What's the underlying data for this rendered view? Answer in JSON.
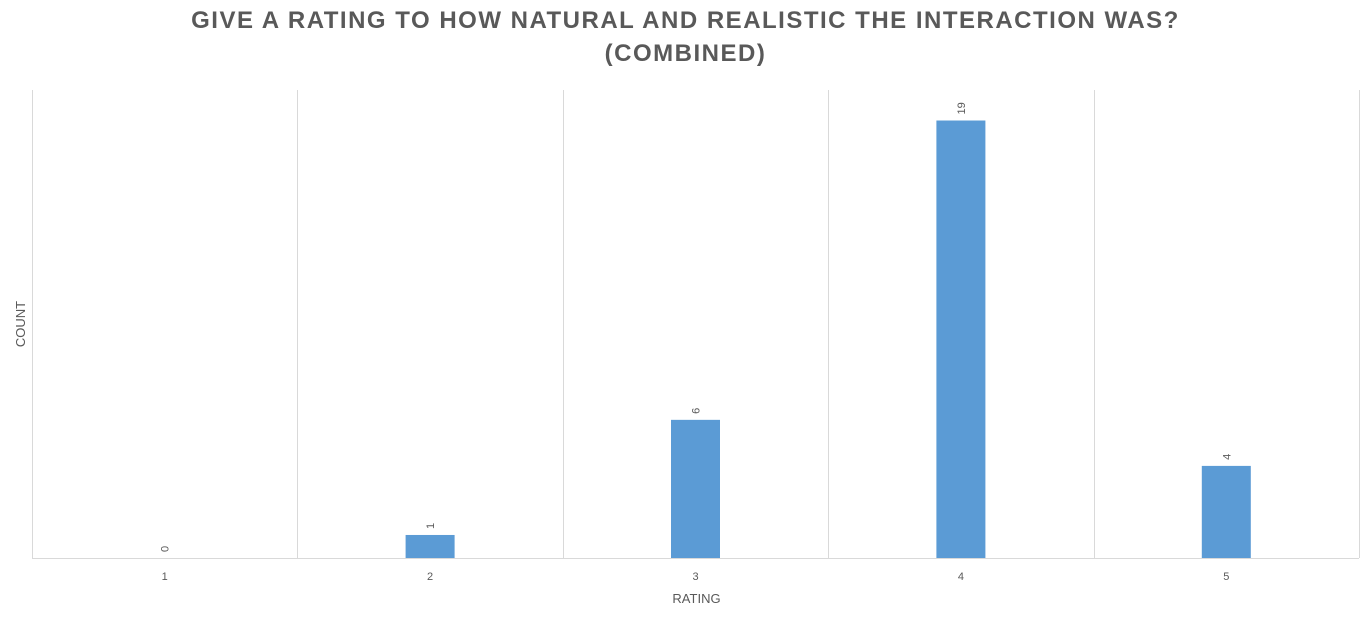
{
  "title": {
    "line1": "GIVE A RATING TO HOW NATURAL AND REALISTIC THE INTERACTION WAS?",
    "line2": "(COMBINED)"
  },
  "colors": {
    "bar": "#5b9bd5",
    "grid": "#d9d9d9",
    "text": "#595959"
  },
  "chart_data": {
    "type": "bar",
    "title": "GIVE A RATING TO HOW NATURAL AND REALISTIC THE INTERACTION WAS? (COMBINED)",
    "xlabel": "RATING",
    "ylabel": "COUNT",
    "categories": [
      "1",
      "2",
      "3",
      "4",
      "5"
    ],
    "values": [
      0,
      1,
      6,
      19,
      4
    ],
    "ylim": [
      0,
      20
    ],
    "data_labels": [
      "0",
      "1",
      "6",
      "19",
      "4"
    ],
    "data_label_orientation": "vertical",
    "grid": "vertical category dividers",
    "y_axis_ticks": false,
    "legend": "none"
  }
}
